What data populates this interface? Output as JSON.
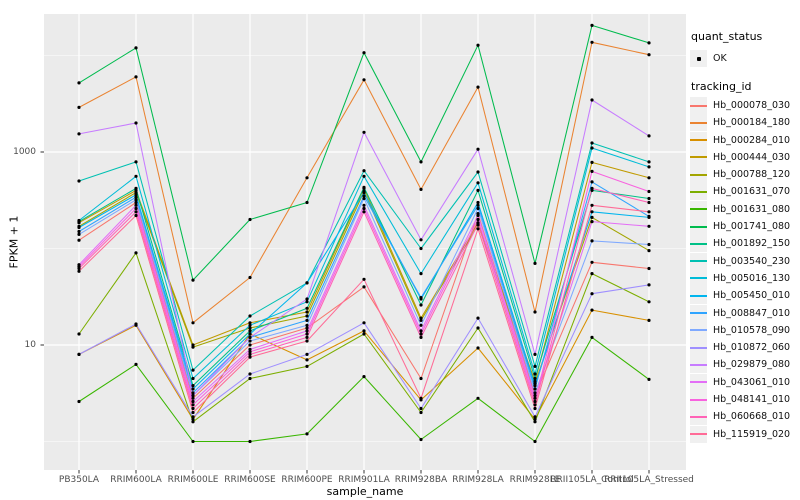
{
  "chart_data": {
    "type": "line",
    "title": "",
    "xlabel": "sample_name",
    "ylabel": "FPKM + 1",
    "y_scale": "log10",
    "ylim": [
      1,
      20500
    ],
    "grid": true,
    "panel_bg": "#EBEBEB",
    "gridline_color": "#FFFFFF",
    "point_color": "#000000",
    "y_ticks": [
      {
        "label": "1000",
        "value": 1000
      },
      {
        "label": "10",
        "value": 10
      }
    ],
    "y_major_gridlines": [
      10,
      1000
    ],
    "y_minor_gridlines": [
      1,
      100,
      10000
    ],
    "categories": [
      "PB350LA",
      "RRIM600LA",
      "RRIM600LE",
      "RRIM600SE",
      "RRIM600PE",
      "RRIM901LA",
      "RRIM928BA",
      "RRIM928LA",
      "RRIM928LE",
      "RRII105LA_Control",
      "RRII105LA_Stressed"
    ],
    "legend": {
      "position": "right",
      "quant_status_title": "quant_status",
      "quant_status_items": [
        {
          "label": "OK",
          "shape": "black-point"
        }
      ],
      "tracking_title": "tracking_id"
    },
    "series": [
      {
        "name": "Hb_000078_030",
        "color": "#F8766D",
        "values": [
          122,
          300,
          2.8,
          10,
          15,
          40,
          4.5,
          230,
          3.0,
          72,
          62
        ]
      },
      {
        "name": "Hb_000184_180",
        "color": "#EA8331",
        "values": [
          2900,
          6000,
          17,
          50,
          540,
          5600,
          410,
          4700,
          22,
          13700,
          10200
        ]
      },
      {
        "name": "Hb_000284_010",
        "color": "#D89000",
        "values": [
          8,
          16,
          1.7,
          13,
          7,
          14,
          2.7,
          9.3,
          1.7,
          23,
          18
        ]
      },
      {
        "name": "Hb_000444_030",
        "color": "#C09B00",
        "values": [
          185,
          400,
          10,
          17,
          22,
          420,
          19,
          185,
          4.2,
          780,
          540
        ]
      },
      {
        "name": "Hb_000788_120",
        "color": "#A3A500",
        "values": [
          170,
          380,
          9.5,
          15,
          20,
          390,
          18,
          175,
          4.0,
          210,
          95
        ]
      },
      {
        "name": "Hb_001631_070",
        "color": "#7CAE00",
        "values": [
          13,
          90,
          1.6,
          4.5,
          6,
          13,
          2.0,
          15,
          1.6,
          55,
          28
        ]
      },
      {
        "name": "Hb_001631_080",
        "color": "#39B600",
        "values": [
          2.6,
          6.3,
          1.0,
          1.0,
          1.2,
          4.7,
          1.05,
          2.8,
          1.0,
          12,
          4.4
        ]
      },
      {
        "name": "Hb_001741_080",
        "color": "#00BB4E",
        "values": [
          5200,
          12000,
          47,
          200,
          300,
          10700,
          790,
          12800,
          70,
          20500,
          13500
        ]
      },
      {
        "name": "Hb_001892_150",
        "color": "#00C087",
        "values": [
          190,
          420,
          3.8,
          14,
          24,
          430,
          26,
          400,
          4.5,
          400,
          330
        ]
      },
      {
        "name": "Hb_003540_230",
        "color": "#00C0B2",
        "values": [
          500,
          790,
          5.5,
          20,
          44,
          640,
          100,
          620,
          6.0,
          1240,
          790
        ]
      },
      {
        "name": "Hb_005016_130",
        "color": "#00BCD8",
        "values": [
          195,
          560,
          4.5,
          16,
          28,
          560,
          55,
          480,
          5.0,
          1100,
          700
        ]
      },
      {
        "name": "Hb_005450_010",
        "color": "#00B5EE",
        "values": [
          165,
          360,
          3.5,
          13,
          44,
          380,
          30,
          300,
          3.8,
          240,
          210
        ]
      },
      {
        "name": "Hb_008847_010",
        "color": "#2FA4FF",
        "values": [
          150,
          340,
          3.2,
          12,
          18,
          350,
          31,
          280,
          3.5,
          490,
          215
        ]
      },
      {
        "name": "Hb_010578_090",
        "color": "#7FA9FF",
        "values": [
          140,
          320,
          3.0,
          11,
          16,
          330,
          16,
          260,
          3.2,
          120,
          110
        ]
      },
      {
        "name": "Hb_010872_060",
        "color": "#9F8FFF",
        "values": [
          8,
          16.5,
          1.8,
          5,
          8,
          17,
          2.2,
          19,
          1.8,
          34,
          42
        ]
      },
      {
        "name": "Hb_029879_080",
        "color": "#C77CFF",
        "values": [
          1540,
          2000,
          3.0,
          12,
          30,
          1600,
          123,
          1070,
          8.0,
          3460,
          1470
        ]
      },
      {
        "name": "Hb_043061_010",
        "color": "#E36EF6",
        "values": [
          68,
          280,
          2.6,
          9,
          14,
          280,
          14,
          220,
          2.8,
          190,
          170
        ]
      },
      {
        "name": "Hb_048141_010",
        "color": "#F863DF",
        "values": [
          65,
          260,
          2.4,
          8.5,
          13,
          260,
          13,
          200,
          2.6,
          630,
          390
        ]
      },
      {
        "name": "Hb_060668_010",
        "color": "#FF62B6",
        "values": [
          62,
          240,
          2.2,
          8,
          12,
          240,
          12,
          180,
          2.4,
          420,
          300
        ]
      },
      {
        "name": "Hb_115919_020",
        "color": "#FF6B97",
        "values": [
          58,
          220,
          2.0,
          7.5,
          11,
          48,
          2.8,
          160,
          2.2,
          280,
          240
        ]
      }
    ]
  }
}
